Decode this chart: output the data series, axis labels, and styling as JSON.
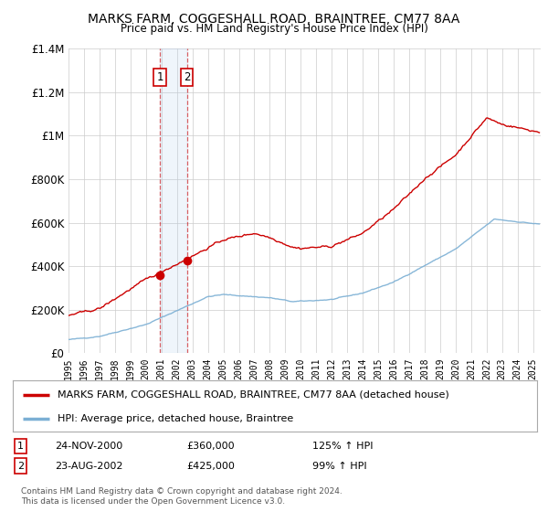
{
  "title": "MARKS FARM, COGGESHALL ROAD, BRAINTREE, CM77 8AA",
  "subtitle": "Price paid vs. HM Land Registry's House Price Index (HPI)",
  "legend_line1": "MARKS FARM, COGGESHALL ROAD, BRAINTREE, CM77 8AA (detached house)",
  "legend_line2": "HPI: Average price, detached house, Braintree",
  "transaction1_date": "24-NOV-2000",
  "transaction1_price": "£360,000",
  "transaction1_hpi": "125% ↑ HPI",
  "transaction1_year": 2000.9,
  "transaction1_value": 360000,
  "transaction2_date": "23-AUG-2002",
  "transaction2_price": "£425,000",
  "transaction2_hpi": "99% ↑ HPI",
  "transaction2_year": 2002.65,
  "transaction2_value": 425000,
  "footer": "Contains HM Land Registry data © Crown copyright and database right 2024.\nThis data is licensed under the Open Government Licence v3.0.",
  "red_color": "#cc0000",
  "blue_color": "#7bafd4",
  "highlight_fill": "#ddeeff",
  "ylim": [
    0,
    1400000
  ],
  "xlim": [
    1995,
    2025.5
  ]
}
